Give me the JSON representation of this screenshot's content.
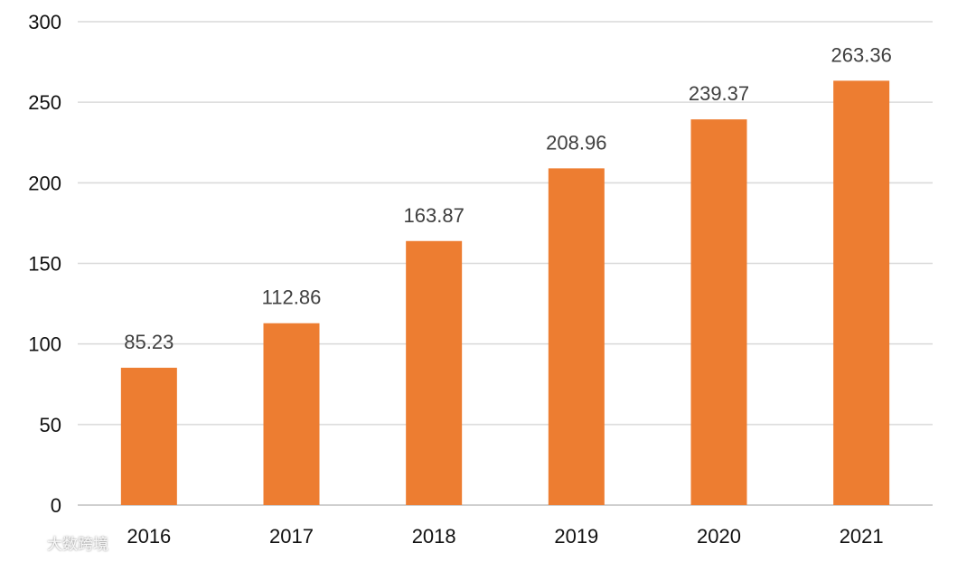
{
  "chart_data": {
    "type": "bar",
    "title": "",
    "xlabel": "",
    "ylabel": "",
    "categories": [
      "2016",
      "2017",
      "2018",
      "2019",
      "2020",
      "2021"
    ],
    "values": [
      85.23,
      112.86,
      163.87,
      208.96,
      239.37,
      263.36
    ],
    "value_labels": [
      "85.23",
      "112.86",
      "163.87",
      "208.96",
      "239.37",
      "263.36"
    ],
    "ylim": [
      0,
      300
    ],
    "yticks": [
      0,
      50,
      100,
      150,
      200,
      250,
      300
    ],
    "ytick_labels": [
      "0",
      "50",
      "100",
      "150",
      "200",
      "250",
      "300"
    ],
    "grid": true,
    "legend": "none",
    "bar_color": "#ED7D31"
  },
  "watermark": {
    "text": "大数跨境"
  }
}
